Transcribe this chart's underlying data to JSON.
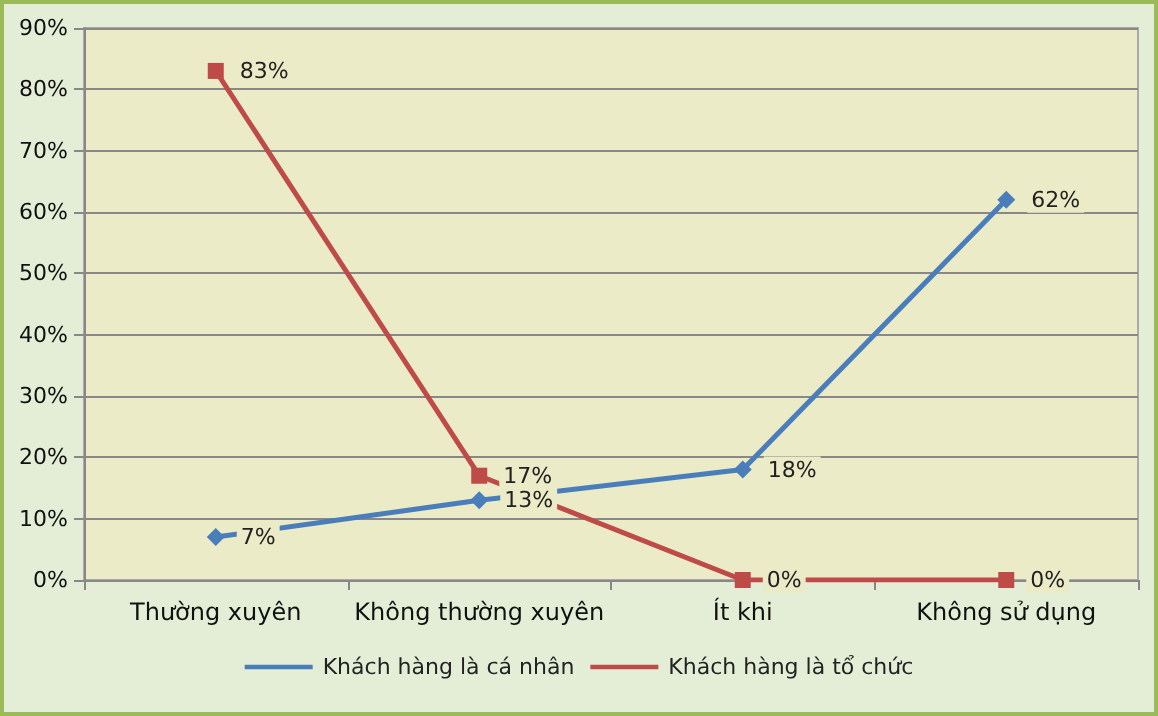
{
  "chart_data": {
    "type": "line",
    "categories": [
      "Thường xuyên",
      "Không thường xuyên",
      "Ít khi",
      "Không sử dụng"
    ],
    "series": [
      {
        "name": "Khách hàng là cá nhân",
        "color": "#4a7ebb",
        "marker": "diamond",
        "values": [
          7,
          13,
          18,
          62
        ],
        "value_labels": [
          "7%",
          "13%",
          "18%",
          "62%"
        ]
      },
      {
        "name": "Khách hàng là tổ chức",
        "color": "#be4b48",
        "marker": "square",
        "values": [
          83,
          17,
          0,
          0
        ],
        "value_labels": [
          "83%",
          "17%",
          "0%",
          "0%"
        ]
      }
    ],
    "ylim": [
      0,
      90
    ],
    "yticks": [
      {
        "value": 0,
        "label": "0%"
      },
      {
        "value": 10,
        "label": "10%"
      },
      {
        "value": 20,
        "label": "20%"
      },
      {
        "value": 30,
        "label": "30%"
      },
      {
        "value": 40,
        "label": "40%"
      },
      {
        "value": 50,
        "label": "50%"
      },
      {
        "value": 60,
        "label": "60%"
      },
      {
        "value": 70,
        "label": "70%"
      },
      {
        "value": 80,
        "label": "80%"
      },
      {
        "value": 90,
        "label": "90%"
      }
    ],
    "grid": "y",
    "legend": "bottom",
    "line_style": "solid"
  }
}
